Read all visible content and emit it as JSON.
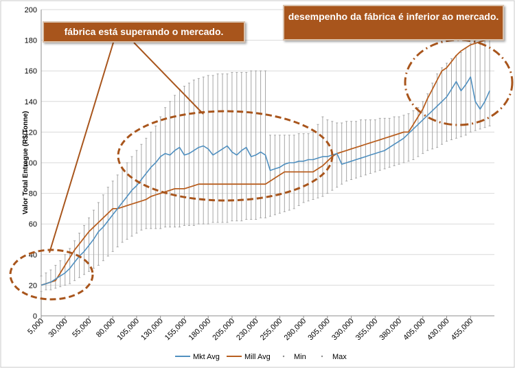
{
  "chart_data": {
    "type": "line",
    "title": "",
    "ylabel": "Valor Total Entregue (R$/Tonne)",
    "xlabel": "",
    "xlim": [
      5000,
      480000
    ],
    "ylim": [
      0,
      200
    ],
    "yticks": [
      0,
      20,
      40,
      60,
      80,
      100,
      120,
      140,
      160,
      180,
      200
    ],
    "xtick_labels": [
      "5,000",
      "30,000",
      "55,000",
      "80,000",
      "105,000",
      "130,000",
      "155,000",
      "180,000",
      "205,000",
      "230,000",
      "255,000",
      "280,000",
      "305,000",
      "330,000",
      "355,000",
      "380,000",
      "405,000",
      "430,000",
      "455,000"
    ],
    "xtick_values": [
      5000,
      30000,
      55000,
      80000,
      105000,
      130000,
      155000,
      180000,
      205000,
      230000,
      255000,
      280000,
      305000,
      330000,
      355000,
      380000,
      405000,
      430000,
      455000
    ],
    "grid": "horizontal",
    "legend_position": "bottom",
    "series": [
      {
        "name": "Mkt Avg",
        "color": "#4f8fbf",
        "x": [
          5000,
          10000,
          15000,
          20000,
          25000,
          30000,
          35000,
          40000,
          45000,
          50000,
          55000,
          60000,
          65000,
          70000,
          75000,
          80000,
          85000,
          90000,
          95000,
          100000,
          105000,
          110000,
          115000,
          120000,
          125000,
          130000,
          135000,
          140000,
          145000,
          150000,
          155000,
          160000,
          165000,
          170000,
          175000,
          180000,
          185000,
          190000,
          195000,
          200000,
          205000,
          210000,
          215000,
          220000,
          225000,
          230000,
          235000,
          240000,
          245000,
          250000,
          255000,
          260000,
          265000,
          270000,
          275000,
          280000,
          285000,
          290000,
          295000,
          300000,
          305000,
          310000,
          315000,
          320000,
          325000,
          330000,
          335000,
          340000,
          345000,
          350000,
          355000,
          360000,
          365000,
          370000,
          375000,
          380000,
          385000,
          390000,
          395000,
          400000,
          405000,
          410000,
          415000,
          420000,
          425000,
          430000,
          435000,
          440000,
          445000,
          450000,
          455000,
          460000,
          465000,
          470000,
          475000
        ],
        "y": [
          20,
          21,
          22,
          24,
          26,
          28,
          31,
          35,
          39,
          42,
          46,
          50,
          55,
          58,
          62,
          66,
          70,
          74,
          78,
          82,
          85,
          89,
          93,
          97,
          100,
          104,
          106,
          105,
          108,
          110,
          105,
          106,
          108,
          110,
          111,
          109,
          105,
          107,
          109,
          111,
          107,
          105,
          108,
          110,
          104,
          105,
          107,
          105,
          95,
          96,
          97,
          99,
          100,
          100,
          101,
          101,
          102,
          102,
          103,
          104,
          104,
          105,
          106,
          99,
          100,
          101,
          102,
          103,
          104,
          105,
          106,
          107,
          108,
          110,
          112,
          114,
          116,
          119,
          122,
          125,
          128,
          131,
          134,
          137,
          140,
          143,
          148,
          153,
          147,
          151,
          156,
          140,
          135,
          140,
          147
        ]
      },
      {
        "name": "Mill Avg",
        "color": "#b85e1f",
        "x": [
          5000,
          10000,
          15000,
          20000,
          25000,
          30000,
          35000,
          40000,
          45000,
          50000,
          55000,
          60000,
          65000,
          70000,
          75000,
          80000,
          85000,
          90000,
          95000,
          100000,
          105000,
          110000,
          115000,
          120000,
          125000,
          130000,
          135000,
          140000,
          145000,
          150000,
          155000,
          160000,
          165000,
          170000,
          175000,
          180000,
          185000,
          190000,
          195000,
          200000,
          205000,
          210000,
          215000,
          220000,
          225000,
          230000,
          235000,
          240000,
          245000,
          250000,
          255000,
          260000,
          265000,
          270000,
          275000,
          280000,
          285000,
          290000,
          295000,
          300000,
          305000,
          310000,
          315000,
          320000,
          325000,
          330000,
          335000,
          340000,
          345000,
          350000,
          355000,
          360000,
          365000,
          370000,
          375000,
          380000,
          385000,
          390000,
          395000,
          400000,
          405000,
          410000,
          415000,
          420000,
          425000,
          430000,
          435000,
          440000,
          445000,
          450000,
          455000,
          460000,
          465000,
          470000,
          475000
        ],
        "y": [
          20,
          21,
          22,
          23,
          28,
          33,
          38,
          43,
          47,
          51,
          55,
          58,
          61,
          64,
          67,
          70,
          70,
          71,
          72,
          73,
          74,
          75,
          76,
          78,
          79,
          80,
          81,
          82,
          83,
          83,
          83,
          84,
          85,
          86,
          86,
          86,
          86,
          86,
          86,
          86,
          86,
          86,
          86,
          86,
          86,
          86,
          86,
          86,
          88,
          90,
          92,
          94,
          94,
          94,
          94,
          94,
          94,
          94,
          96,
          98,
          101,
          104,
          106,
          107,
          108,
          109,
          110,
          111,
          112,
          113,
          114,
          115,
          116,
          117,
          118,
          119,
          120,
          120,
          125,
          130,
          135,
          142,
          148,
          154,
          160,
          162,
          166,
          170,
          173,
          175,
          177,
          178,
          179,
          180,
          181
        ]
      },
      {
        "name": "Min",
        "color": "#9a9a9a",
        "x": [
          5000,
          10000,
          15000,
          20000,
          25000,
          30000,
          35000,
          40000,
          45000,
          50000,
          55000,
          60000,
          65000,
          70000,
          75000,
          80000,
          85000,
          90000,
          95000,
          100000,
          105000,
          110000,
          115000,
          120000,
          125000,
          130000,
          135000,
          140000,
          145000,
          150000,
          155000,
          160000,
          165000,
          170000,
          175000,
          180000,
          185000,
          190000,
          195000,
          200000,
          205000,
          210000,
          215000,
          220000,
          225000,
          230000,
          235000,
          240000,
          245000,
          250000,
          255000,
          260000,
          265000,
          270000,
          275000,
          280000,
          285000,
          290000,
          295000,
          300000,
          305000,
          310000,
          315000,
          320000,
          325000,
          330000,
          335000,
          340000,
          345000,
          350000,
          355000,
          360000,
          365000,
          370000,
          375000,
          380000,
          385000,
          390000,
          395000,
          400000,
          405000,
          410000,
          415000,
          420000,
          425000,
          430000,
          435000,
          440000,
          445000,
          450000,
          455000,
          460000,
          465000,
          470000,
          475000
        ],
        "y": [
          16,
          17,
          17,
          18,
          19,
          20,
          21,
          23,
          25,
          27,
          29,
          31,
          33,
          36,
          39,
          42,
          45,
          48,
          50,
          52,
          54,
          56,
          57,
          57,
          57,
          57,
          58,
          58,
          58,
          58,
          59,
          59,
          59,
          60,
          60,
          60,
          61,
          61,
          61,
          61,
          62,
          62,
          62,
          63,
          63,
          63,
          64,
          64,
          65,
          66,
          67,
          68,
          69,
          70,
          72,
          74,
          75,
          76,
          77,
          78,
          80,
          82,
          84,
          86,
          88,
          89,
          90,
          91,
          92,
          93,
          94,
          95,
          96,
          97,
          98,
          99,
          100,
          101,
          102,
          104,
          106,
          108,
          109,
          110,
          112,
          114,
          115,
          116,
          117,
          118,
          120,
          121,
          122,
          123,
          124
        ]
      },
      {
        "name": "Max",
        "color": "#9a9a9a",
        "x": [
          5000,
          10000,
          15000,
          20000,
          25000,
          30000,
          35000,
          40000,
          45000,
          50000,
          55000,
          60000,
          65000,
          70000,
          75000,
          80000,
          85000,
          90000,
          95000,
          100000,
          105000,
          110000,
          115000,
          120000,
          125000,
          130000,
          135000,
          140000,
          145000,
          150000,
          155000,
          160000,
          165000,
          170000,
          175000,
          180000,
          185000,
          190000,
          195000,
          200000,
          205000,
          210000,
          215000,
          220000,
          225000,
          230000,
          235000,
          240000,
          245000,
          250000,
          255000,
          260000,
          265000,
          270000,
          275000,
          280000,
          285000,
          290000,
          295000,
          300000,
          305000,
          310000,
          315000,
          320000,
          325000,
          330000,
          335000,
          340000,
          345000,
          350000,
          355000,
          360000,
          365000,
          370000,
          375000,
          380000,
          385000,
          390000,
          395000,
          400000,
          405000,
          410000,
          415000,
          420000,
          425000,
          430000,
          435000,
          440000,
          445000,
          450000,
          455000,
          460000,
          465000,
          470000,
          475000
        ],
        "y": [
          26,
          28,
          30,
          33,
          36,
          40,
          44,
          49,
          54,
          59,
          64,
          69,
          74,
          79,
          84,
          88,
          92,
          96,
          100,
          104,
          108,
          112,
          116,
          120,
          124,
          130,
          136,
          140,
          144,
          148,
          150,
          152,
          154,
          155,
          156,
          157,
          157,
          158,
          158,
          158,
          159,
          159,
          159,
          159,
          160,
          160,
          160,
          160,
          118,
          118,
          118,
          118,
          118,
          118,
          119,
          119,
          119,
          120,
          125,
          130,
          128,
          127,
          126,
          126,
          127,
          127,
          127,
          128,
          128,
          128,
          128,
          129,
          129,
          129,
          130,
          130,
          131,
          132,
          134,
          136,
          140,
          145,
          152,
          158,
          162,
          165,
          168,
          170,
          172,
          175,
          178,
          180,
          182,
          184,
          186
        ]
      }
    ],
    "annotations": [
      "fábrica está superando o mercado.",
      "desempenho da fábrica é inferior ao mercado."
    ]
  }
}
